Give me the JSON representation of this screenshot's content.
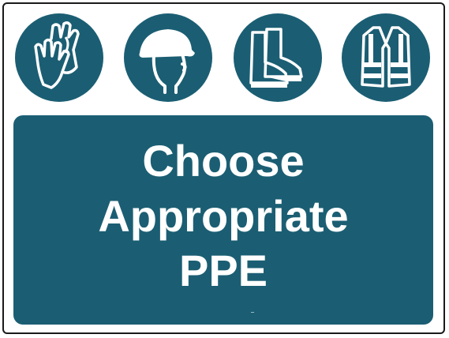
{
  "sign": {
    "message_lines": [
      "Choose",
      "Appropriate",
      "PPE"
    ],
    "icons": [
      "gloves-icon",
      "hard-hat-icon",
      "safety-boots-icon",
      "hi-vis-vest-icon"
    ]
  },
  "colors": {
    "panel": "#1b5e73",
    "foreground": "#ffffff",
    "border": "#1a1a1a"
  }
}
